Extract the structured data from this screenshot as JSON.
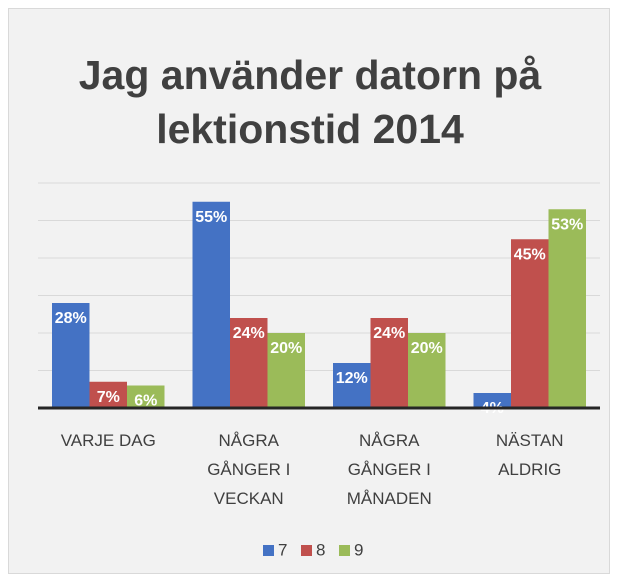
{
  "chart_data": {
    "type": "bar",
    "title": "Jag använder datorn på lektionstid 2014",
    "categories": [
      "VARJE DAG",
      "NÅGRA GÅNGER I VECKAN",
      "NÅGRA GÅNGER I MÅNADEN",
      "NÄSTAN ALDRIG"
    ],
    "series": [
      {
        "name": "7",
        "color": "#4472c4",
        "values": [
          28,
          55,
          12,
          4
        ],
        "value_labels": [
          "28%",
          "55%",
          "12%",
          "4%"
        ]
      },
      {
        "name": "8",
        "color": "#c0504d",
        "values": [
          7,
          24,
          24,
          45
        ],
        "value_labels": [
          "7%",
          "24%",
          "24%",
          "45%"
        ]
      },
      {
        "name": "9",
        "color": "#9bbb59",
        "values": [
          6,
          20,
          20,
          53
        ],
        "value_labels": [
          "6%",
          "20%",
          "20%",
          "53%"
        ]
      }
    ],
    "ylim": [
      0,
      60
    ],
    "yticks": [
      0,
      10,
      20,
      30,
      40,
      50,
      60
    ],
    "grid": true,
    "legend": "bottom"
  }
}
